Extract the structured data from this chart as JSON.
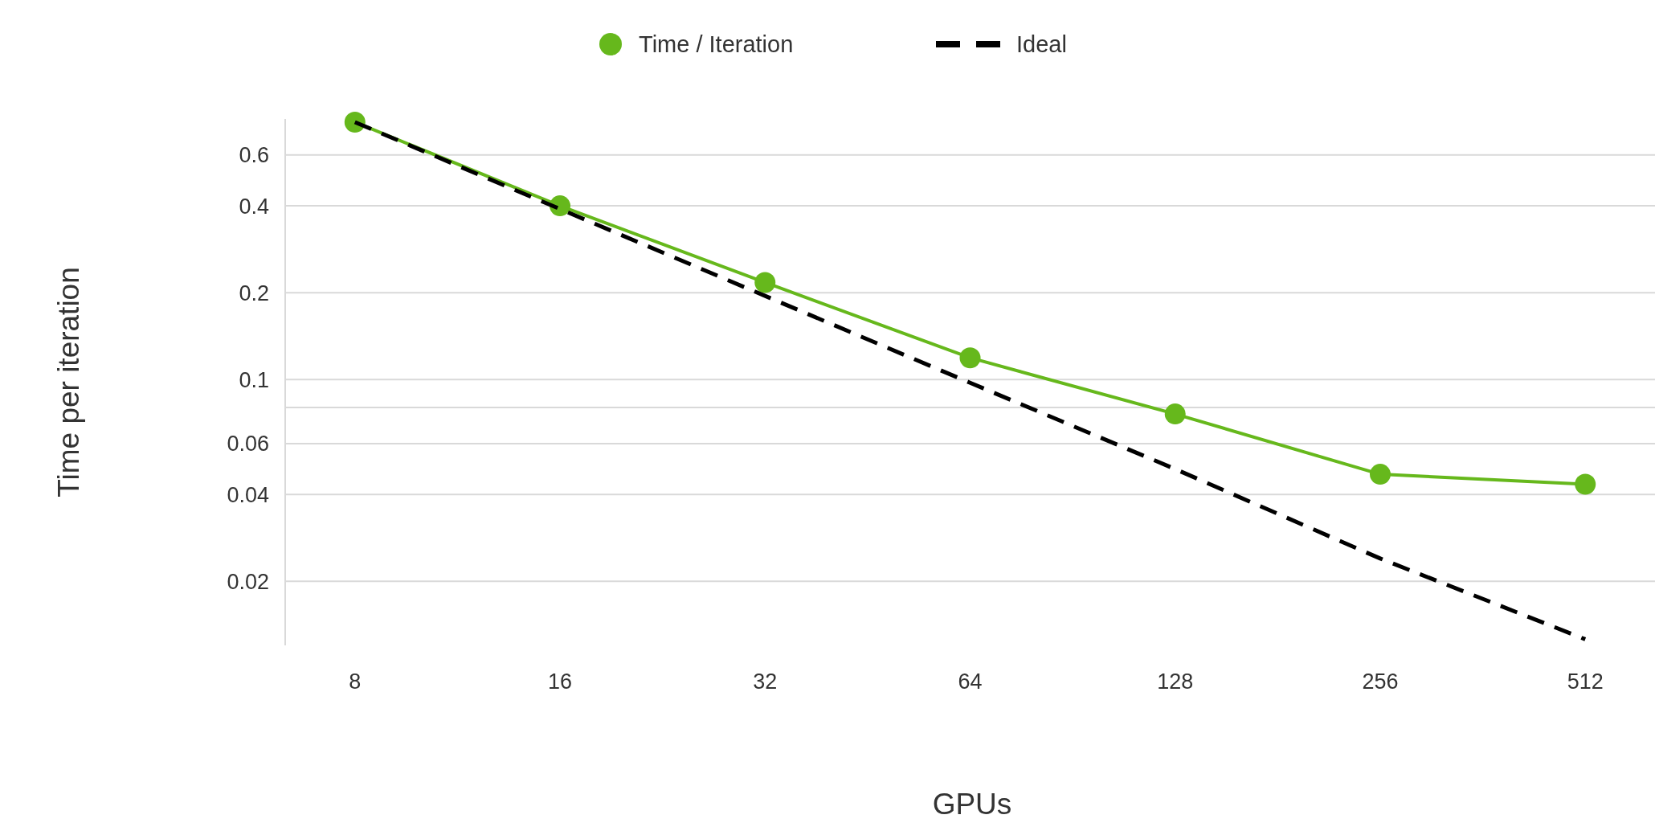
{
  "chart_data": {
    "type": "line",
    "xlabel": "GPUs",
    "ylabel": "Time per iteration",
    "categories": [
      "8",
      "16",
      "32",
      "64",
      "128",
      "256",
      "512"
    ],
    "series": [
      {
        "name": "Time / Iteration",
        "color": "#66b81c",
        "values": [
          0.78,
          0.4,
          0.217,
          0.119,
          0.076,
          0.047,
          0.0434
        ],
        "marker": "circle",
        "line_style": "solid"
      },
      {
        "name": "Ideal",
        "color": "#000000",
        "values": [
          0.78,
          0.39,
          0.195,
          0.0975,
          0.049,
          0.024,
          0.0126
        ],
        "marker": "none",
        "line_style": "dashed"
      }
    ],
    "log": "y",
    "ylim": [
      0.012,
      0.8
    ],
    "yticks": [
      0.02,
      0.04,
      0.06,
      {
        "value": 0.08,
        "label": null
      },
      0.1,
      0.2,
      0.4,
      0.6
    ],
    "grid": "y",
    "legend": "top"
  }
}
